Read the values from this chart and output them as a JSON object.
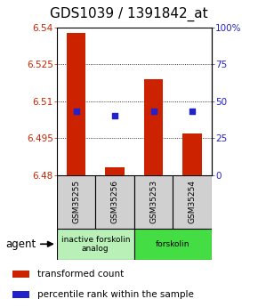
{
  "title": "GDS1039 / 1391842_at",
  "samples": [
    "GSM35255",
    "GSM35256",
    "GSM35253",
    "GSM35254"
  ],
  "bar_values": [
    6.538,
    6.483,
    6.519,
    6.497
  ],
  "bar_base": 6.48,
  "percentile_values": [
    6.506,
    6.504,
    6.506,
    6.506
  ],
  "ylim": [
    6.48,
    6.54
  ],
  "yticks": [
    6.48,
    6.495,
    6.51,
    6.525,
    6.54
  ],
  "ytick_labels": [
    "6.48",
    "6.495",
    "6.51",
    "6.525",
    "6.54"
  ],
  "right_ytick_percents": [
    0,
    25,
    50,
    75,
    100
  ],
  "right_ytick_labels": [
    "0",
    "25",
    "50",
    "75",
    "100%"
  ],
  "bar_color": "#cc2200",
  "percentile_color": "#2222cc",
  "groups": [
    {
      "label": "inactive forskolin\nanalog",
      "start": 0,
      "end": 2,
      "color": "#b8f0b8"
    },
    {
      "label": "forskolin",
      "start": 2,
      "end": 4,
      "color": "#44dd44"
    }
  ],
  "agent_label": "agent",
  "legend_items": [
    {
      "color": "#cc2200",
      "label": "transformed count"
    },
    {
      "color": "#2222cc",
      "label": "percentile rank within the sample"
    }
  ],
  "bar_width": 0.5,
  "left_tick_color": "#cc2200",
  "right_tick_color": "#2222cc",
  "title_fontsize": 11,
  "tick_fontsize": 7.5,
  "legend_fontsize": 7.5
}
